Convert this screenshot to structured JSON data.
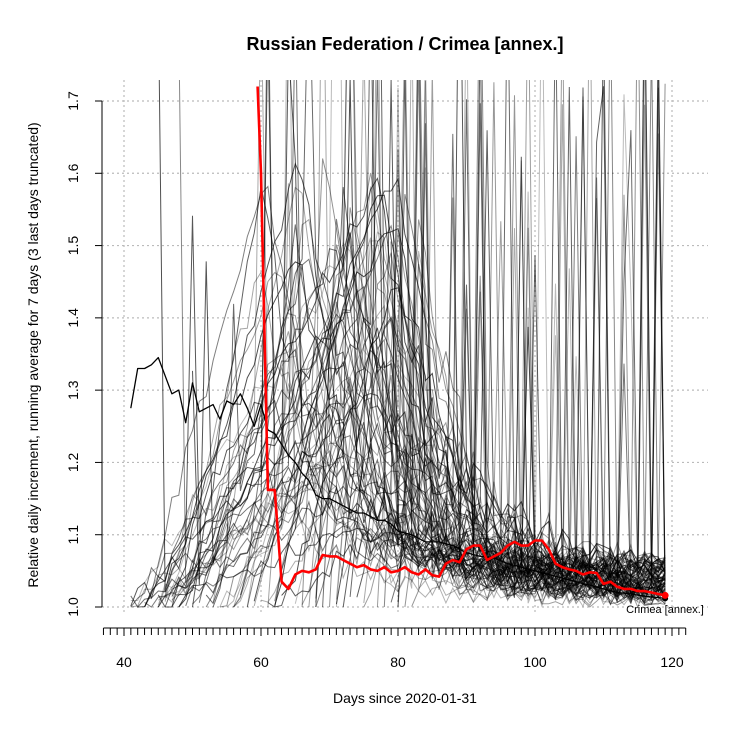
{
  "chart_data": {
    "type": "line",
    "title": "Russian Federation / Crimea [annex.]",
    "xlabel": "Days since 2020-01-31",
    "ylabel": "Relative daily increment, running average for 7 days (3 last days truncated)",
    "xlim": [
      37,
      122
    ],
    "ylim": [
      1.0,
      1.72
    ],
    "x_ticks": [
      40,
      60,
      80,
      100,
      120
    ],
    "y_ticks": [
      1.0,
      1.1,
      1.2,
      1.3,
      1.4,
      1.5,
      1.6,
      1.7
    ],
    "y_tick_labels": [
      "1.0",
      "1.1",
      "1.2",
      "1.3",
      "1.4",
      "1.5",
      "1.6",
      "1.7"
    ],
    "grid": true,
    "highlight_label": "Crimea [annex.]",
    "colors": {
      "highlight": "#ff0000",
      "country": "#000000",
      "regions": "#808080",
      "grid": "#bbbbbb"
    },
    "series": [
      {
        "name": "Crimea [annex.]",
        "role": "highlight",
        "x": [
          59.5,
          60,
          61,
          62,
          63,
          64,
          65,
          66,
          67,
          68,
          69,
          70,
          71,
          72,
          73,
          74,
          75,
          76,
          77,
          78,
          79,
          80,
          81,
          82,
          83,
          84,
          85,
          86,
          87,
          88,
          89,
          90,
          91,
          92,
          93,
          94,
          95,
          96,
          97,
          98,
          99,
          100,
          101,
          102,
          103,
          104,
          105,
          106,
          107,
          108,
          109,
          110,
          111,
          112,
          113,
          114,
          115,
          116,
          117,
          118,
          119
        ],
        "values": [
          1.72,
          1.6,
          1.162,
          1.162,
          1.035,
          1.025,
          1.045,
          1.05,
          1.048,
          1.052,
          1.072,
          1.07,
          1.07,
          1.065,
          1.06,
          1.055,
          1.058,
          1.052,
          1.05,
          1.055,
          1.048,
          1.05,
          1.055,
          1.048,
          1.045,
          1.052,
          1.044,
          1.042,
          1.06,
          1.065,
          1.062,
          1.08,
          1.085,
          1.085,
          1.065,
          1.07,
          1.075,
          1.085,
          1.09,
          1.085,
          1.085,
          1.092,
          1.092,
          1.08,
          1.06,
          1.055,
          1.052,
          1.05,
          1.045,
          1.048,
          1.047,
          1.032,
          1.035,
          1.028,
          1.025,
          1.025,
          1.022,
          1.022,
          1.02,
          1.018,
          1.016
        ]
      },
      {
        "name": "Russian Federation",
        "role": "country",
        "x": [
          41,
          42,
          43,
          44,
          45,
          46,
          47,
          48,
          49,
          50,
          51,
          52,
          53,
          54,
          55,
          56,
          57,
          58,
          59,
          60,
          61,
          62,
          63,
          64,
          65,
          66,
          67,
          68,
          69,
          70,
          71,
          72,
          73,
          74,
          75,
          76,
          77,
          78,
          79,
          80,
          82,
          84,
          86,
          88,
          90,
          92,
          94,
          96,
          98,
          100,
          102,
          104,
          106,
          108,
          110,
          112,
          114,
          116,
          118,
          119
        ],
        "values": [
          1.275,
          1.33,
          1.33,
          1.335,
          1.345,
          1.32,
          1.295,
          1.3,
          1.255,
          1.31,
          1.27,
          1.275,
          1.28,
          1.26,
          1.285,
          1.28,
          1.295,
          1.275,
          1.25,
          1.28,
          1.245,
          1.24,
          1.225,
          1.21,
          1.2,
          1.185,
          1.175,
          1.155,
          1.15,
          1.15,
          1.145,
          1.14,
          1.135,
          1.13,
          1.13,
          1.125,
          1.12,
          1.12,
          1.115,
          1.105,
          1.1,
          1.09,
          1.09,
          1.085,
          1.075,
          1.07,
          1.068,
          1.06,
          1.055,
          1.05,
          1.045,
          1.04,
          1.035,
          1.03,
          1.025,
          1.02,
          1.018,
          1.015,
          1.013,
          1.012
        ]
      }
    ]
  }
}
